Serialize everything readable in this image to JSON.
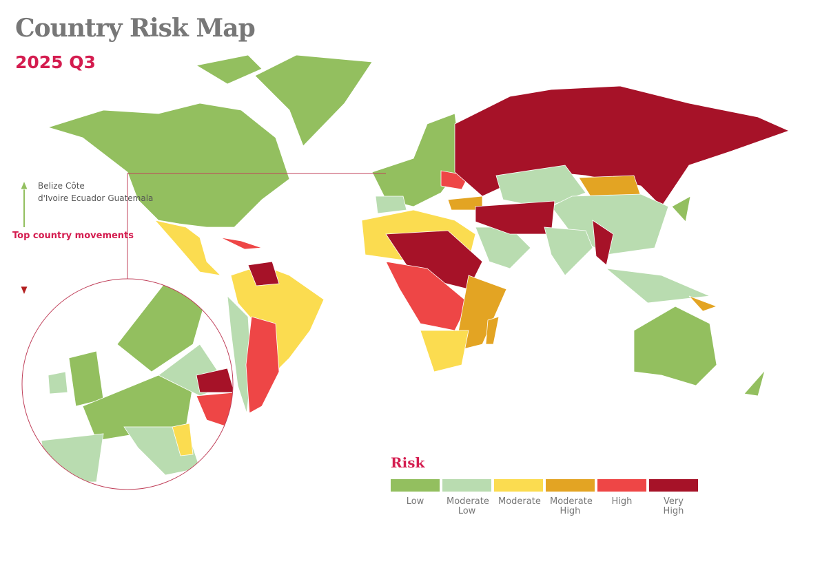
{
  "title": "Country Risk Map",
  "subtitle": "2025 Q3",
  "movements": {
    "label": "Top country movements",
    "countries": [
      "Belize",
      "Côte d'Ivoire",
      "Ecuador",
      "Guatemala"
    ]
  },
  "legend": {
    "title": "Risk",
    "items": [
      {
        "label": "Low",
        "color": "#93bf5f"
      },
      {
        "label": "Moderate Low",
        "color": "#b9dcb0"
      },
      {
        "label": "Moderate",
        "color": "#fbdc50"
      },
      {
        "label": "Moderate High",
        "color": "#e3a423"
      },
      {
        "label": "High",
        "color": "#ee4646"
      },
      {
        "label": "Very High",
        "color": "#a61228"
      }
    ]
  }
}
